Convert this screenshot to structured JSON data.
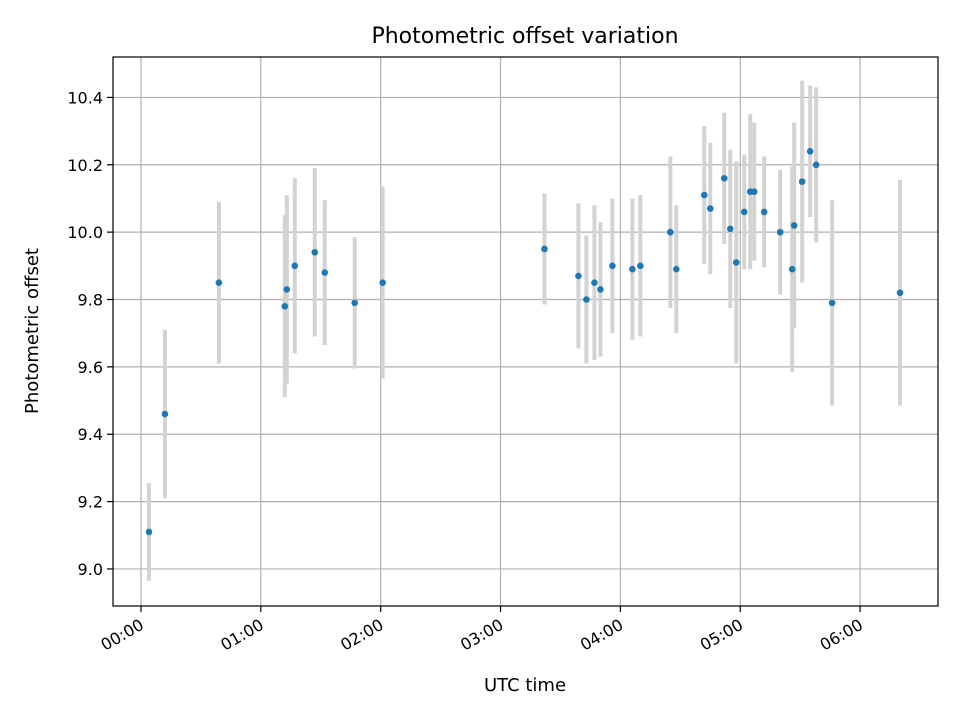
{
  "chart_data": {
    "type": "scatter",
    "title": "Photometric offset variation",
    "xlabel": "UTC time",
    "ylabel": "Photometric offset",
    "grid": true,
    "xlim": [
      "-00:14",
      "06:39"
    ],
    "ylim": [
      8.89,
      10.52
    ],
    "x_ticks": [
      "00:00",
      "01:00",
      "02:00",
      "03:00",
      "04:00",
      "05:00",
      "06:00"
    ],
    "y_ticks": [
      "9.0",
      "9.2",
      "9.4",
      "9.6",
      "9.8",
      "10.0",
      "10.2",
      "10.4"
    ],
    "colors": {
      "point": "#1f77b4",
      "errorbar": "#d3d3d3",
      "grid": "#b0b0b0"
    },
    "points": [
      {
        "x": "00:04",
        "y": 9.11,
        "err": 0.145
      },
      {
        "x": "00:12",
        "y": 9.46,
        "err": 0.25
      },
      {
        "x": "00:39",
        "y": 9.85,
        "err": 0.24
      },
      {
        "x": "01:12",
        "y": 9.78,
        "err": 0.27
      },
      {
        "x": "01:13",
        "y": 9.83,
        "err": 0.28
      },
      {
        "x": "01:17",
        "y": 9.9,
        "err": 0.26
      },
      {
        "x": "01:27",
        "y": 9.94,
        "err": 0.25
      },
      {
        "x": "01:32",
        "y": 9.88,
        "err": 0.215
      },
      {
        "x": "01:47",
        "y": 9.79,
        "err": 0.195
      },
      {
        "x": "02:01",
        "y": 9.85,
        "err": 0.285
      },
      {
        "x": "03:22",
        "y": 9.95,
        "err": 0.165
      },
      {
        "x": "03:39",
        "y": 9.87,
        "err": 0.215
      },
      {
        "x": "03:43",
        "y": 9.8,
        "err": 0.19
      },
      {
        "x": "03:47",
        "y": 9.85,
        "err": 0.23
      },
      {
        "x": "03:50",
        "y": 9.83,
        "err": 0.2
      },
      {
        "x": "03:56",
        "y": 9.9,
        "err": 0.2
      },
      {
        "x": "04:06",
        "y": 9.89,
        "err": 0.21
      },
      {
        "x": "04:10",
        "y": 9.9,
        "err": 0.21
      },
      {
        "x": "04:25",
        "y": 10.0,
        "err": 0.225
      },
      {
        "x": "04:28",
        "y": 9.89,
        "err": 0.19
      },
      {
        "x": "04:42",
        "y": 10.11,
        "err": 0.205
      },
      {
        "x": "04:45",
        "y": 10.07,
        "err": 0.195
      },
      {
        "x": "04:52",
        "y": 10.16,
        "err": 0.195
      },
      {
        "x": "04:55",
        "y": 10.01,
        "err": 0.235
      },
      {
        "x": "04:58",
        "y": 9.91,
        "err": 0.3
      },
      {
        "x": "05:02",
        "y": 10.06,
        "err": 0.17
      },
      {
        "x": "05:05",
        "y": 10.12,
        "err": 0.23
      },
      {
        "x": "05:07",
        "y": 10.12,
        "err": 0.205
      },
      {
        "x": "05:12",
        "y": 10.06,
        "err": 0.165
      },
      {
        "x": "05:20",
        "y": 10.0,
        "err": 0.185
      },
      {
        "x": "05:26",
        "y": 9.89,
        "err": 0.305
      },
      {
        "x": "05:27",
        "y": 10.02,
        "err": 0.305
      },
      {
        "x": "05:31",
        "y": 10.15,
        "err": 0.3
      },
      {
        "x": "05:35",
        "y": 10.24,
        "err": 0.195
      },
      {
        "x": "05:38",
        "y": 10.2,
        "err": 0.23
      },
      {
        "x": "05:46",
        "y": 9.79,
        "err": 0.305
      },
      {
        "x": "06:20",
        "y": 9.82,
        "err": 0.335
      }
    ]
  }
}
